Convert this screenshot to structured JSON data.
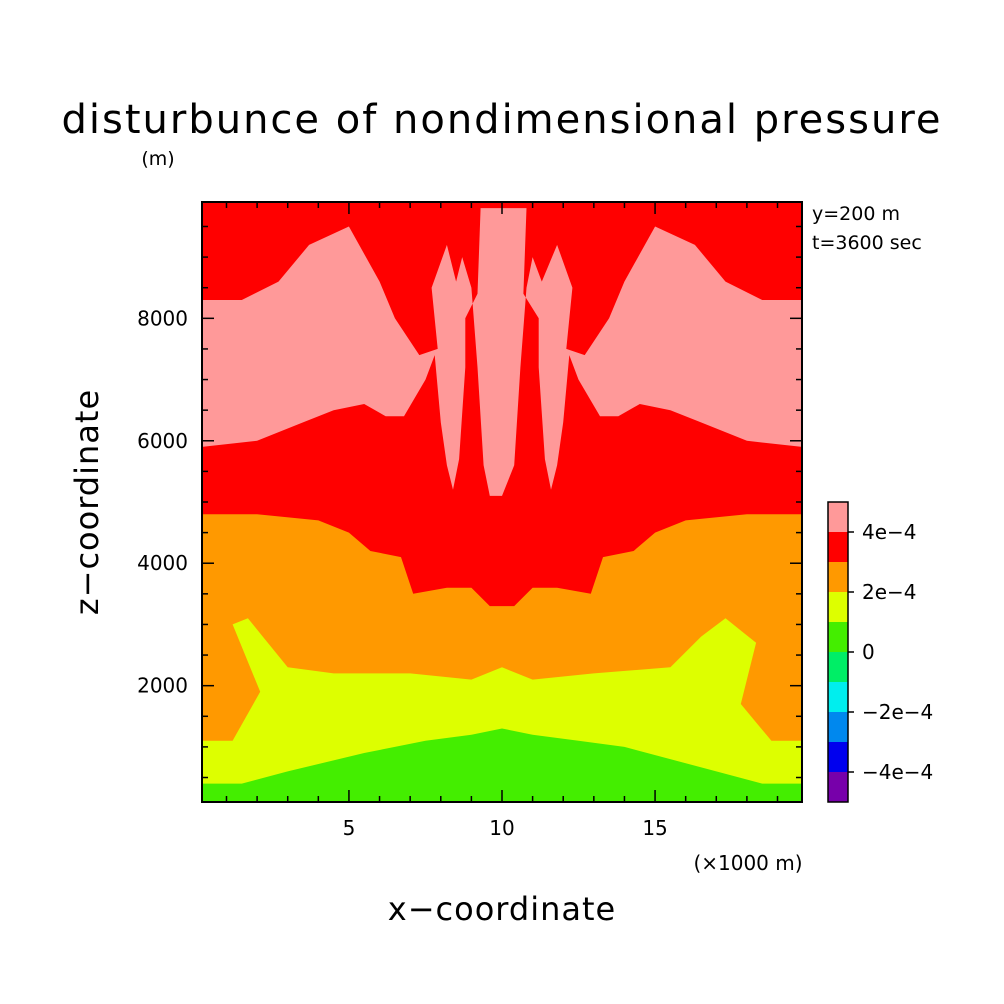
{
  "chart_data": {
    "type": "heatmap",
    "title": "disturbunce of nondimensional pressure",
    "xlabel": "x−coordinate",
    "ylabel": "z−coordinate",
    "y_unit": "(m)",
    "x_unit": "(×1000 m)",
    "annotations": [
      "y=200 m",
      "t=3600 sec"
    ],
    "xlim": [
      0.2,
      19.8
    ],
    "ylim": [
      100,
      9900
    ],
    "x_ticks": [
      5,
      10,
      15
    ],
    "y_ticks": [
      2000,
      4000,
      6000,
      8000
    ],
    "colorbar": {
      "labels": [
        "4e−4",
        "2e−4",
        "0",
        "−2e−4",
        "−4e−4"
      ],
      "bins": [
        {
          "lo": null,
          "hi": -0.0004,
          "color": "#7700aa"
        },
        {
          "lo": -0.0004,
          "hi": -0.0003,
          "color": "#0000ee"
        },
        {
          "lo": -0.0003,
          "hi": -0.0002,
          "color": "#0088ee"
        },
        {
          "lo": -0.0002,
          "hi": -0.0001,
          "color": "#00eeee"
        },
        {
          "lo": -0.0001,
          "hi": 0.0,
          "color": "#00ee66"
        },
        {
          "lo": 0.0,
          "hi": 0.0001,
          "color": "#44ee00"
        },
        {
          "lo": 0.0001,
          "hi": 0.0002,
          "color": "#ddff00"
        },
        {
          "lo": 0.0002,
          "hi": 0.0003,
          "color": "#ff9900"
        },
        {
          "lo": 0.0003,
          "hi": 0.0004,
          "color": "#ff0000"
        },
        {
          "lo": 0.0004,
          "hi": null,
          "color": "#ff9999"
        }
      ]
    },
    "regions": [
      {
        "name": "band-1e-4-to-2e-4",
        "color": "#ddff00",
        "points": [
          [
            0.2,
            100
          ],
          [
            19.8,
            100
          ],
          [
            19.8,
            1100
          ],
          [
            18.8,
            1100
          ],
          [
            17.8,
            1700
          ],
          [
            18.3,
            2700
          ],
          [
            17.3,
            3100
          ],
          [
            16.5,
            2800
          ],
          [
            15.5,
            2300
          ],
          [
            13.0,
            2200
          ],
          [
            11.0,
            2100
          ],
          [
            10.0,
            2300
          ],
          [
            9.0,
            2100
          ],
          [
            7.0,
            2200
          ],
          [
            4.5,
            2200
          ],
          [
            3.0,
            2300
          ],
          [
            1.7,
            3100
          ],
          [
            1.2,
            3000
          ],
          [
            2.1,
            1900
          ],
          [
            1.2,
            1100
          ],
          [
            0.2,
            1100
          ]
        ]
      },
      {
        "name": "band-0-to-1e-4",
        "color": "#44ee00",
        "points": [
          [
            0.2,
            100
          ],
          [
            19.8,
            100
          ],
          [
            19.8,
            400
          ],
          [
            18.5,
            400
          ],
          [
            17.0,
            600
          ],
          [
            14.0,
            1000
          ],
          [
            12.5,
            1100
          ],
          [
            11.0,
            1200
          ],
          [
            10.0,
            1300
          ],
          [
            9.0,
            1200
          ],
          [
            7.5,
            1100
          ],
          [
            6.5,
            1000
          ],
          [
            5.5,
            900
          ],
          [
            3.0,
            600
          ],
          [
            1.5,
            400
          ],
          [
            0.2,
            400
          ]
        ]
      },
      {
        "name": "band-3e-4-to-4e-4",
        "color": "#ff0000",
        "points": [
          [
            0.2,
            4800
          ],
          [
            2.0,
            4800
          ],
          [
            4.0,
            4700
          ],
          [
            5.0,
            4500
          ],
          [
            5.7,
            4200
          ],
          [
            6.7,
            4100
          ],
          [
            7.1,
            3500
          ],
          [
            8.2,
            3600
          ],
          [
            9.0,
            3600
          ],
          [
            9.6,
            3300
          ],
          [
            10.0,
            3300
          ],
          [
            10.4,
            3300
          ],
          [
            11.0,
            3600
          ],
          [
            11.8,
            3600
          ],
          [
            12.9,
            3500
          ],
          [
            13.3,
            4100
          ],
          [
            14.3,
            4200
          ],
          [
            15.0,
            4500
          ],
          [
            16.0,
            4700
          ],
          [
            18.0,
            4800
          ],
          [
            19.8,
            4800
          ],
          [
            19.8,
            9900
          ],
          [
            0.2,
            9900
          ]
        ]
      },
      {
        "name": "band-above-4e-4",
        "color": "#ff9999",
        "points": [
          [
            0.2,
            5900
          ],
          [
            2.0,
            6000
          ],
          [
            3.5,
            6300
          ],
          [
            4.5,
            6500
          ],
          [
            5.5,
            6600
          ],
          [
            6.2,
            6400
          ],
          [
            6.8,
            6400
          ],
          [
            7.5,
            7000
          ],
          [
            7.8,
            7400
          ],
          [
            8.0,
            6300
          ],
          [
            8.2,
            5600
          ],
          [
            8.4,
            5200
          ],
          [
            8.6,
            5700
          ],
          [
            8.8,
            7200
          ],
          [
            8.8,
            8000
          ],
          [
            9.2,
            8400
          ],
          [
            9.3,
            9800
          ],
          [
            9.7,
            9800
          ],
          [
            10.1,
            9800
          ],
          [
            10.5,
            9800
          ],
          [
            10.8,
            9800
          ],
          [
            10.7,
            8400
          ],
          [
            11.2,
            8000
          ],
          [
            11.2,
            7200
          ],
          [
            11.4,
            5700
          ],
          [
            11.6,
            5200
          ],
          [
            11.8,
            5600
          ],
          [
            12.0,
            6300
          ],
          [
            12.2,
            7400
          ],
          [
            12.5,
            7000
          ],
          [
            13.2,
            6400
          ],
          [
            13.8,
            6400
          ],
          [
            14.5,
            6600
          ],
          [
            15.5,
            6500
          ],
          [
            16.5,
            6300
          ],
          [
            18.0,
            6000
          ],
          [
            19.8,
            5900
          ],
          [
            19.8,
            8300
          ],
          [
            18.5,
            8300
          ],
          [
            17.3,
            8600
          ],
          [
            16.3,
            9200
          ],
          [
            15.0,
            9500
          ],
          [
            14.0,
            8600
          ],
          [
            13.5,
            8000
          ],
          [
            12.7,
            7400
          ],
          [
            12.1,
            7500
          ],
          [
            12.3,
            8500
          ],
          [
            11.8,
            9200
          ],
          [
            11.3,
            8600
          ],
          [
            11.0,
            9000
          ],
          [
            10.8,
            8500
          ],
          [
            10.6,
            7200
          ],
          [
            10.4,
            5600
          ],
          [
            10.0,
            5100
          ],
          [
            9.6,
            5100
          ],
          [
            9.4,
            5600
          ],
          [
            9.2,
            7200
          ],
          [
            9.0,
            8500
          ],
          [
            8.7,
            9000
          ],
          [
            8.5,
            8600
          ],
          [
            8.2,
            9200
          ],
          [
            7.7,
            8500
          ],
          [
            7.9,
            7500
          ],
          [
            7.3,
            7400
          ],
          [
            6.5,
            8000
          ],
          [
            6.0,
            8600
          ],
          [
            5.0,
            9500
          ],
          [
            3.7,
            9200
          ],
          [
            2.7,
            8600
          ],
          [
            1.5,
            8300
          ],
          [
            0.2,
            8300
          ]
        ]
      }
    ]
  }
}
